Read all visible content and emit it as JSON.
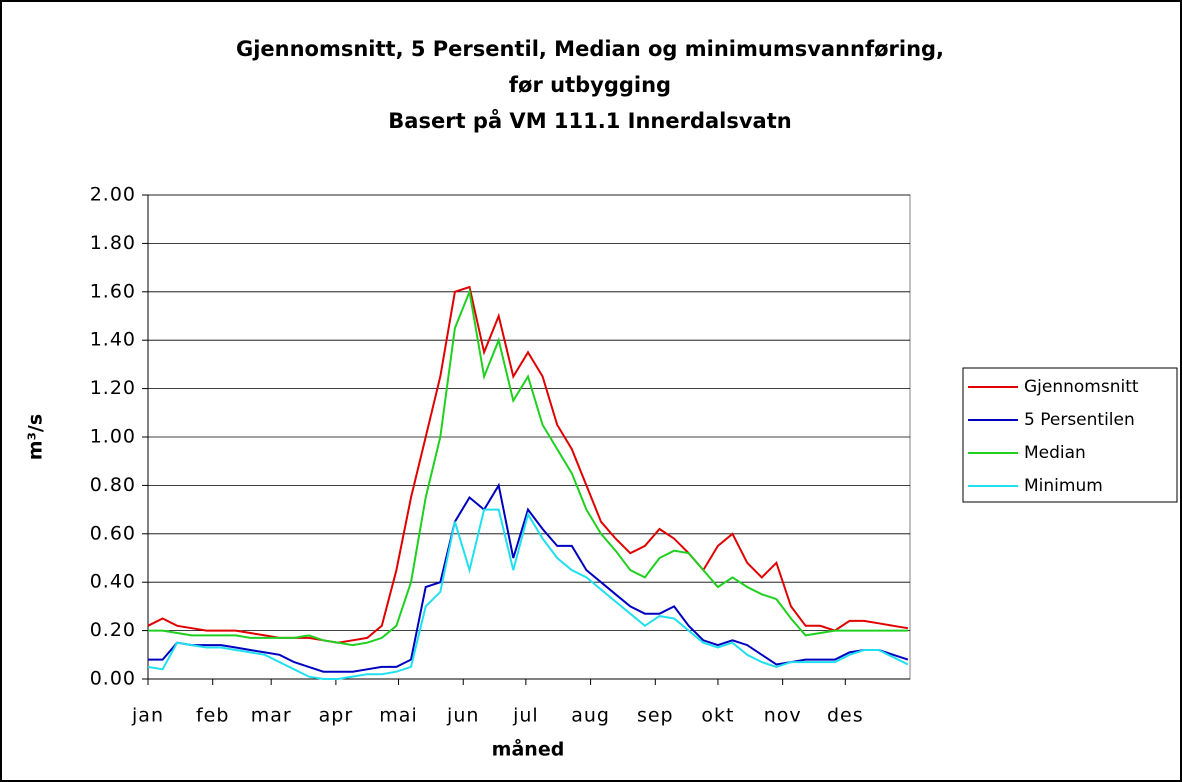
{
  "chart_data": {
    "type": "line",
    "title": [
      "Gjennomsnitt, 5 Persentil, Median og minimumsvannføring,",
      "før utbygging",
      "Basert på VM 111.1 Innerdalsvatn"
    ],
    "xlabel": "måned",
    "ylabel": "m³/s",
    "x": [
      1,
      8,
      15,
      22,
      29,
      36,
      43,
      50,
      57,
      64,
      71,
      78,
      85,
      92,
      99,
      106,
      113,
      120,
      127,
      134,
      141,
      148,
      155,
      162,
      169,
      176,
      183,
      190,
      197,
      204,
      211,
      218,
      225,
      232,
      239,
      246,
      253,
      260,
      267,
      274,
      281,
      288,
      295,
      302,
      309,
      316,
      323,
      330,
      337,
      344,
      351,
      358,
      365
    ],
    "xlim": [
      1,
      366
    ],
    "xticks": [
      {
        "value": 1,
        "label": "jan"
      },
      {
        "value": 32,
        "label": "feb"
      },
      {
        "value": 60,
        "label": "mar"
      },
      {
        "value": 91,
        "label": "apr"
      },
      {
        "value": 121,
        "label": "mai"
      },
      {
        "value": 152,
        "label": "jun"
      },
      {
        "value": 182,
        "label": "jul"
      },
      {
        "value": 213,
        "label": "aug"
      },
      {
        "value": 244,
        "label": "sep"
      },
      {
        "value": 274,
        "label": "okt"
      },
      {
        "value": 305,
        "label": "nov"
      },
      {
        "value": 335,
        "label": "des"
      }
    ],
    "ylim": [
      0,
      2
    ],
    "yticks": [
      {
        "value": 0,
        "label": "0.00"
      },
      {
        "value": 0.2,
        "label": "0.20"
      },
      {
        "value": 0.4,
        "label": "0.40"
      },
      {
        "value": 0.6,
        "label": "0.60"
      },
      {
        "value": 0.8,
        "label": "0.80"
      },
      {
        "value": 1,
        "label": "1.00"
      },
      {
        "value": 1.2,
        "label": "1.20"
      },
      {
        "value": 1.4,
        "label": "1.40"
      },
      {
        "value": 1.6,
        "label": "1.60"
      },
      {
        "value": 1.8,
        "label": "1.80"
      },
      {
        "value": 2,
        "label": "2.00"
      }
    ],
    "grid": true,
    "legend": "right",
    "series": [
      {
        "name": "Gjennomsnitt",
        "color": "#e00000",
        "values": [
          0.22,
          0.25,
          0.22,
          0.21,
          0.2,
          0.2,
          0.2,
          0.19,
          0.18,
          0.17,
          0.17,
          0.17,
          0.16,
          0.15,
          0.16,
          0.17,
          0.22,
          0.45,
          0.75,
          1.0,
          1.25,
          1.6,
          1.62,
          1.35,
          1.5,
          1.25,
          1.35,
          1.25,
          1.05,
          0.95,
          0.8,
          0.65,
          0.58,
          0.52,
          0.55,
          0.62,
          0.58,
          0.52,
          0.45,
          0.55,
          0.6,
          0.48,
          0.42,
          0.48,
          0.3,
          0.22,
          0.22,
          0.2,
          0.24,
          0.24,
          0.23,
          0.22,
          0.21
        ]
      },
      {
        "name": "5 Persentilen",
        "color": "#0000c0",
        "values": [
          0.08,
          0.08,
          0.15,
          0.14,
          0.14,
          0.14,
          0.13,
          0.12,
          0.11,
          0.1,
          0.07,
          0.05,
          0.03,
          0.03,
          0.03,
          0.04,
          0.05,
          0.05,
          0.08,
          0.38,
          0.4,
          0.65,
          0.75,
          0.7,
          0.8,
          0.5,
          0.7,
          0.62,
          0.55,
          0.55,
          0.45,
          0.4,
          0.35,
          0.3,
          0.27,
          0.27,
          0.3,
          0.22,
          0.16,
          0.14,
          0.16,
          0.14,
          0.1,
          0.06,
          0.07,
          0.08,
          0.08,
          0.08,
          0.11,
          0.12,
          0.12,
          0.1,
          0.08
        ]
      },
      {
        "name": "Median",
        "color": "#20d020",
        "values": [
          0.2,
          0.2,
          0.19,
          0.18,
          0.18,
          0.18,
          0.18,
          0.17,
          0.17,
          0.17,
          0.17,
          0.18,
          0.16,
          0.15,
          0.14,
          0.15,
          0.17,
          0.22,
          0.4,
          0.75,
          1.0,
          1.45,
          1.6,
          1.25,
          1.4,
          1.15,
          1.25,
          1.05,
          0.95,
          0.85,
          0.7,
          0.6,
          0.53,
          0.45,
          0.42,
          0.5,
          0.53,
          0.52,
          0.45,
          0.38,
          0.42,
          0.38,
          0.35,
          0.33,
          0.25,
          0.18,
          0.19,
          0.2,
          0.2,
          0.2,
          0.2,
          0.2,
          0.2
        ]
      },
      {
        "name": "Minimum",
        "color": "#20e0f0",
        "values": [
          0.05,
          0.04,
          0.15,
          0.14,
          0.13,
          0.13,
          0.12,
          0.11,
          0.1,
          0.07,
          0.04,
          0.01,
          0.0,
          0.0,
          0.01,
          0.02,
          0.02,
          0.03,
          0.05,
          0.3,
          0.36,
          0.65,
          0.45,
          0.7,
          0.7,
          0.45,
          0.68,
          0.58,
          0.5,
          0.45,
          0.42,
          0.37,
          0.32,
          0.27,
          0.22,
          0.26,
          0.25,
          0.2,
          0.15,
          0.13,
          0.15,
          0.1,
          0.07,
          0.05,
          0.07,
          0.07,
          0.07,
          0.07,
          0.1,
          0.12,
          0.12,
          0.09,
          0.06
        ]
      }
    ]
  }
}
